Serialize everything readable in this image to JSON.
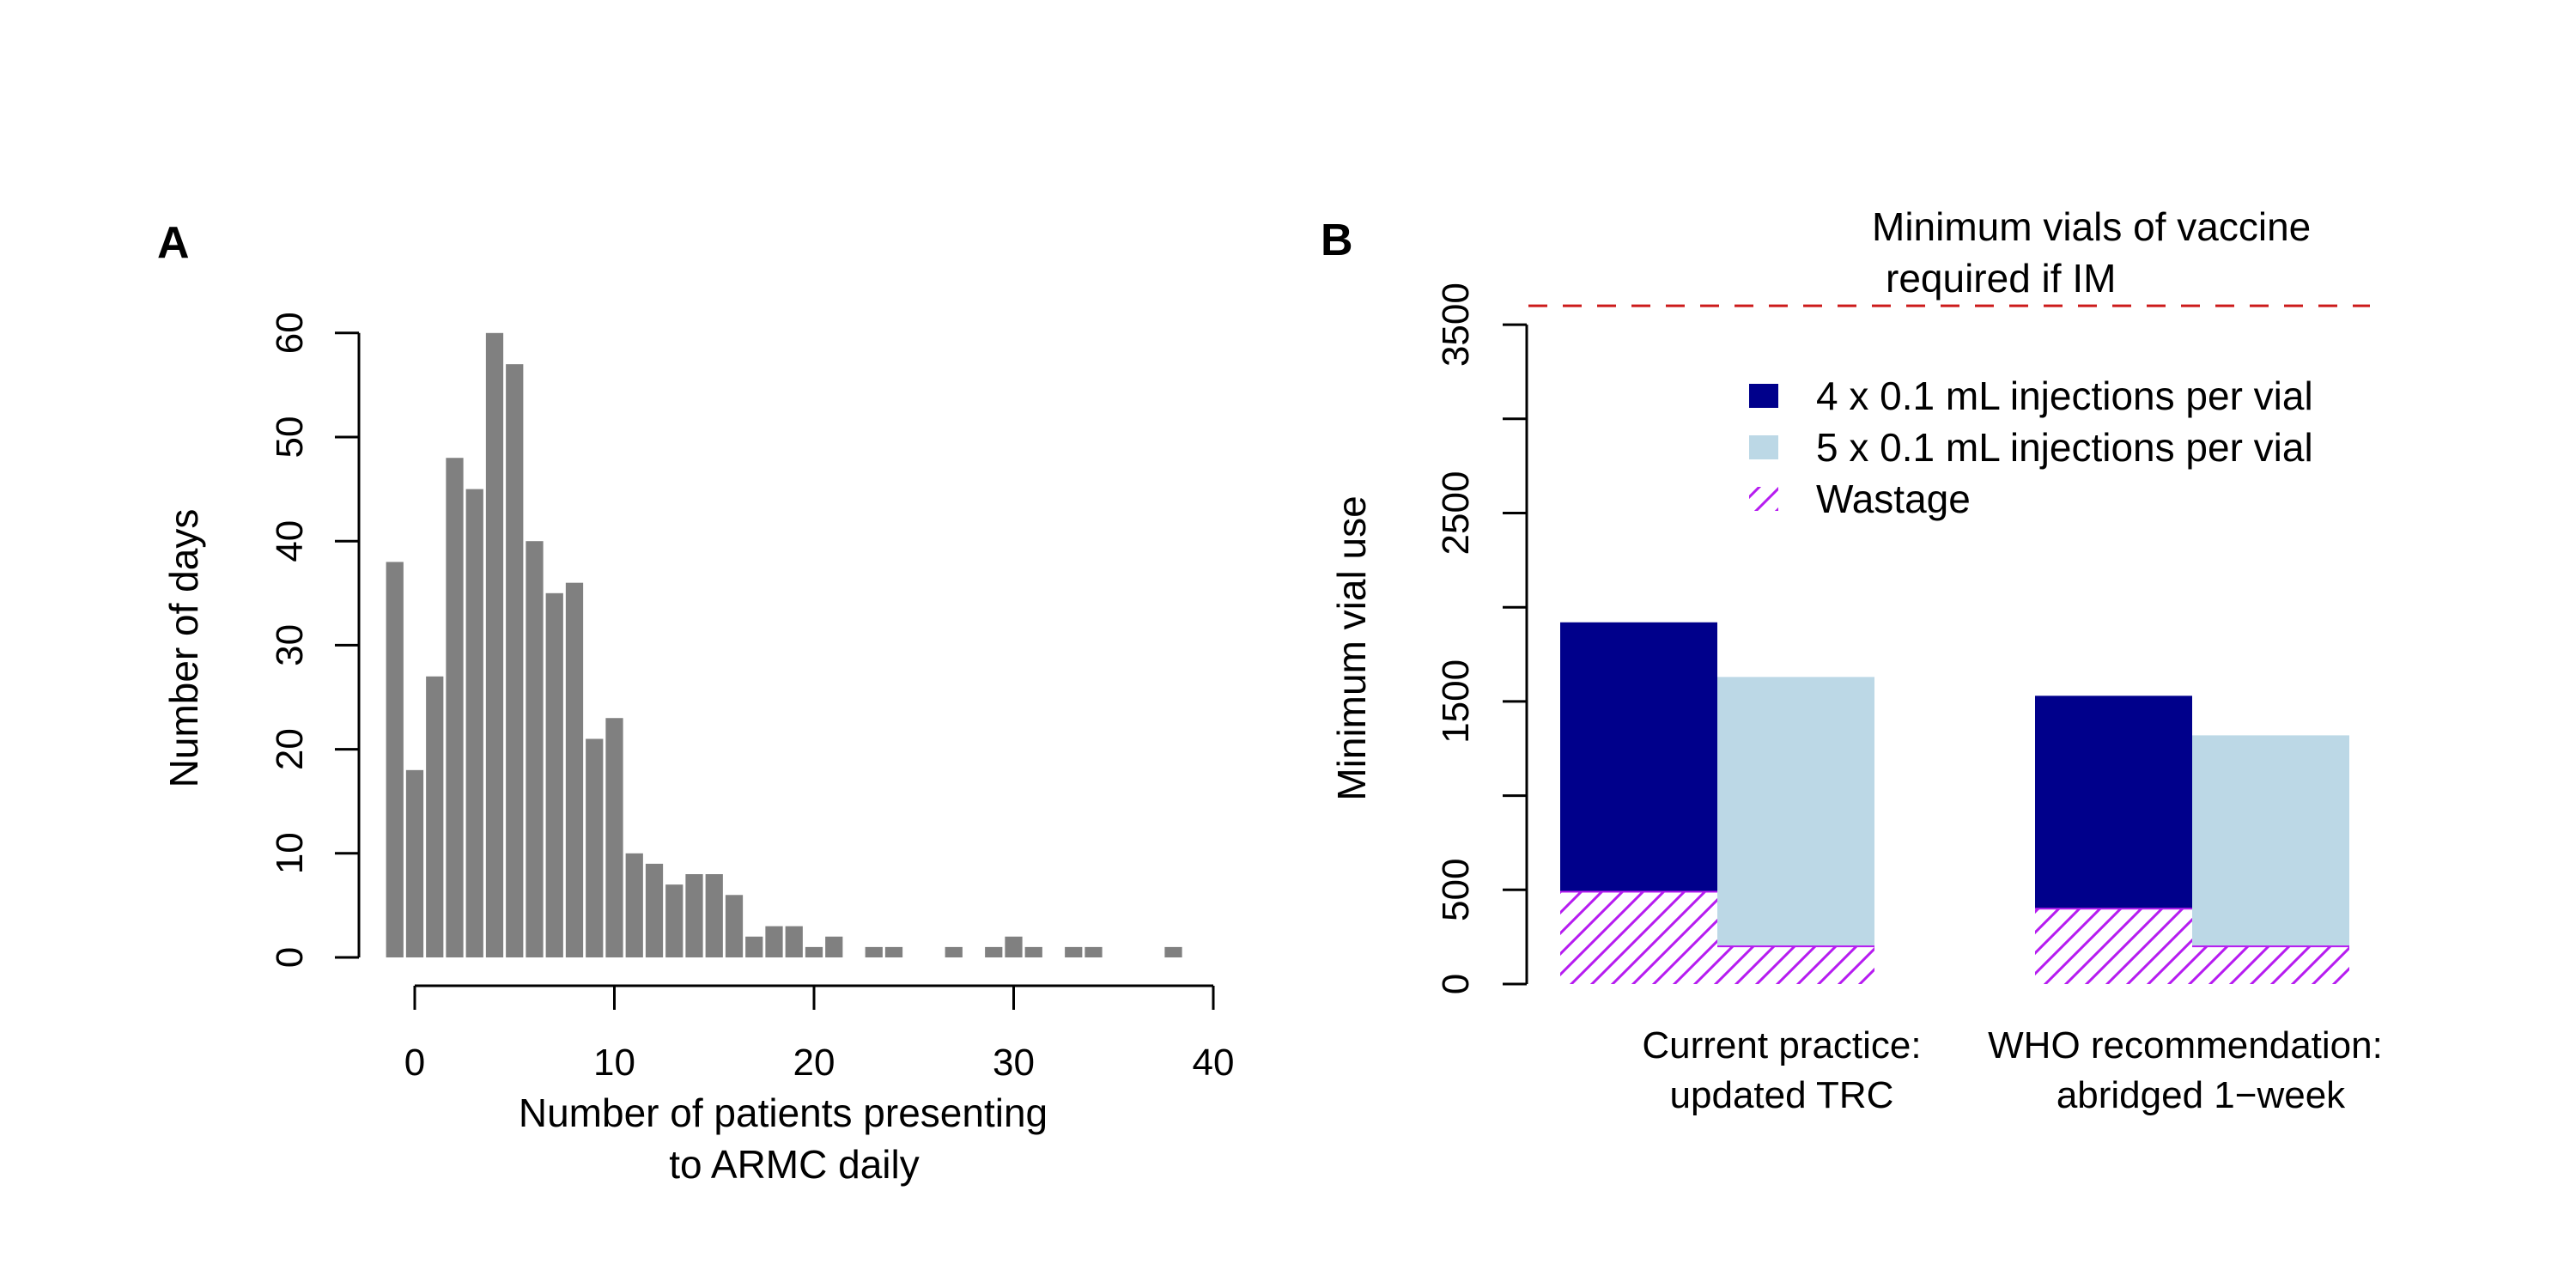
{
  "chart_data": [
    {
      "panel": "A",
      "type": "bar",
      "xlabel_lines": [
        "Number of patients presenting",
        "to ARMC daily"
      ],
      "ylabel": "Number of days",
      "xlim": [
        -1,
        40
      ],
      "ylim": [
        0,
        60
      ],
      "xticks": [
        "0",
        "10",
        "20",
        "30",
        "40"
      ],
      "yticks": [
        "0",
        "10",
        "20",
        "30",
        "40",
        "50",
        "60"
      ],
      "bar_color": "#808080",
      "x": [
        -1,
        0,
        1,
        2,
        3,
        4,
        5,
        6,
        7,
        8,
        9,
        10,
        11,
        12,
        13,
        14,
        15,
        16,
        17,
        18,
        19,
        20,
        21,
        22,
        23,
        24,
        25,
        26,
        27,
        28,
        29,
        30,
        31,
        32,
        33,
        34,
        35,
        36,
        37,
        38,
        39
      ],
      "values": [
        38,
        18,
        27,
        48,
        45,
        60,
        57,
        40,
        35,
        36,
        21,
        23,
        10,
        9,
        7,
        8,
        8,
        6,
        2,
        3,
        3,
        1,
        2,
        0,
        1,
        1,
        0,
        0,
        1,
        0,
        1,
        2,
        1,
        0,
        1,
        1,
        0,
        0,
        0,
        1,
        0
      ]
    },
    {
      "panel": "B",
      "type": "bar",
      "ylabel": "Minimum vial use",
      "ylim": [
        0,
        3500
      ],
      "yticks": [
        "0",
        "500",
        "1500",
        "2500",
        "3500"
      ],
      "ytick_values": [
        0,
        500,
        1000,
        1500,
        2000,
        2500,
        3000,
        3500
      ],
      "categories": [
        [
          "Current practice:",
          "updated TRC"
        ],
        [
          "WHO recommendation:",
          "abridged 1−week"
        ]
      ],
      "series": [
        {
          "name": "4 x 0.1 mL injections per vial",
          "color": "#00008B",
          "values": [
            1920,
            1530
          ],
          "wastage": [
            490,
            400
          ]
        },
        {
          "name": "5 x 0.1 mL injections per vial",
          "color": "#BCD8E6",
          "values": [
            1630,
            1320
          ],
          "wastage": [
            200,
            200
          ]
        }
      ],
      "wastage_label": "Wastage",
      "wastage_color": "#B61CF0",
      "reference_line": {
        "value": 3600,
        "color": "#CC1A1A",
        "label_lines": [
          "Minimum vials of vaccine",
          "required if IM"
        ]
      },
      "legend_placement": "top-right"
    }
  ],
  "panel_labels": {
    "a": "A",
    "b": "B"
  }
}
